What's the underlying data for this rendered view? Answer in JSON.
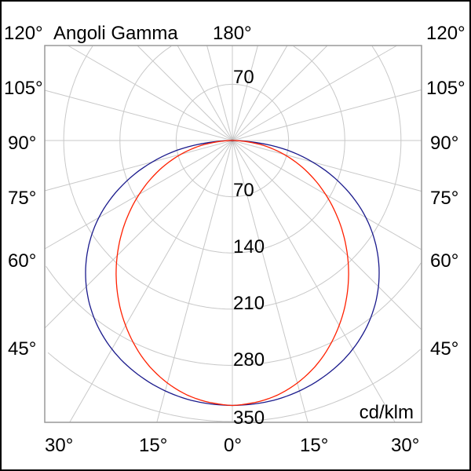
{
  "chart_data": {
    "type": "polar",
    "title": "Angoli Gamma",
    "unit_label": "cd/klm",
    "top_angle_label": "180°",
    "left_angle_labels": [
      "120°",
      "105°",
      "90°",
      "75°",
      "60°",
      "45°"
    ],
    "right_angle_labels": [
      "120°",
      "105°",
      "90°",
      "75°",
      "60°",
      "45°"
    ],
    "bottom_angle_labels": [
      "30°",
      "15°",
      "0°",
      "15°",
      "30°"
    ],
    "ring_values": [
      70,
      140,
      210,
      280,
      350
    ],
    "ring_labels": {
      "upper": "70",
      "lower": [
        "70",
        "140",
        "210",
        "280",
        "350"
      ]
    },
    "r_max": 350,
    "radial_step_deg": 15,
    "grid": true,
    "series": [
      {
        "color": "#1a1a8c",
        "gamma": [
          0,
          10,
          20,
          30,
          40,
          50,
          60,
          70,
          80,
          90
        ],
        "values": [
          330,
          327,
          317,
          300,
          274,
          238,
          192,
          135,
          70,
          0
        ]
      },
      {
        "color": "#ff2000",
        "gamma": [
          0,
          10,
          20,
          30,
          40,
          50,
          60,
          70,
          80,
          90
        ],
        "values": [
          330,
          322,
          300,
          266,
          225,
          180,
          134,
          89,
          44,
          0
        ]
      }
    ]
  }
}
